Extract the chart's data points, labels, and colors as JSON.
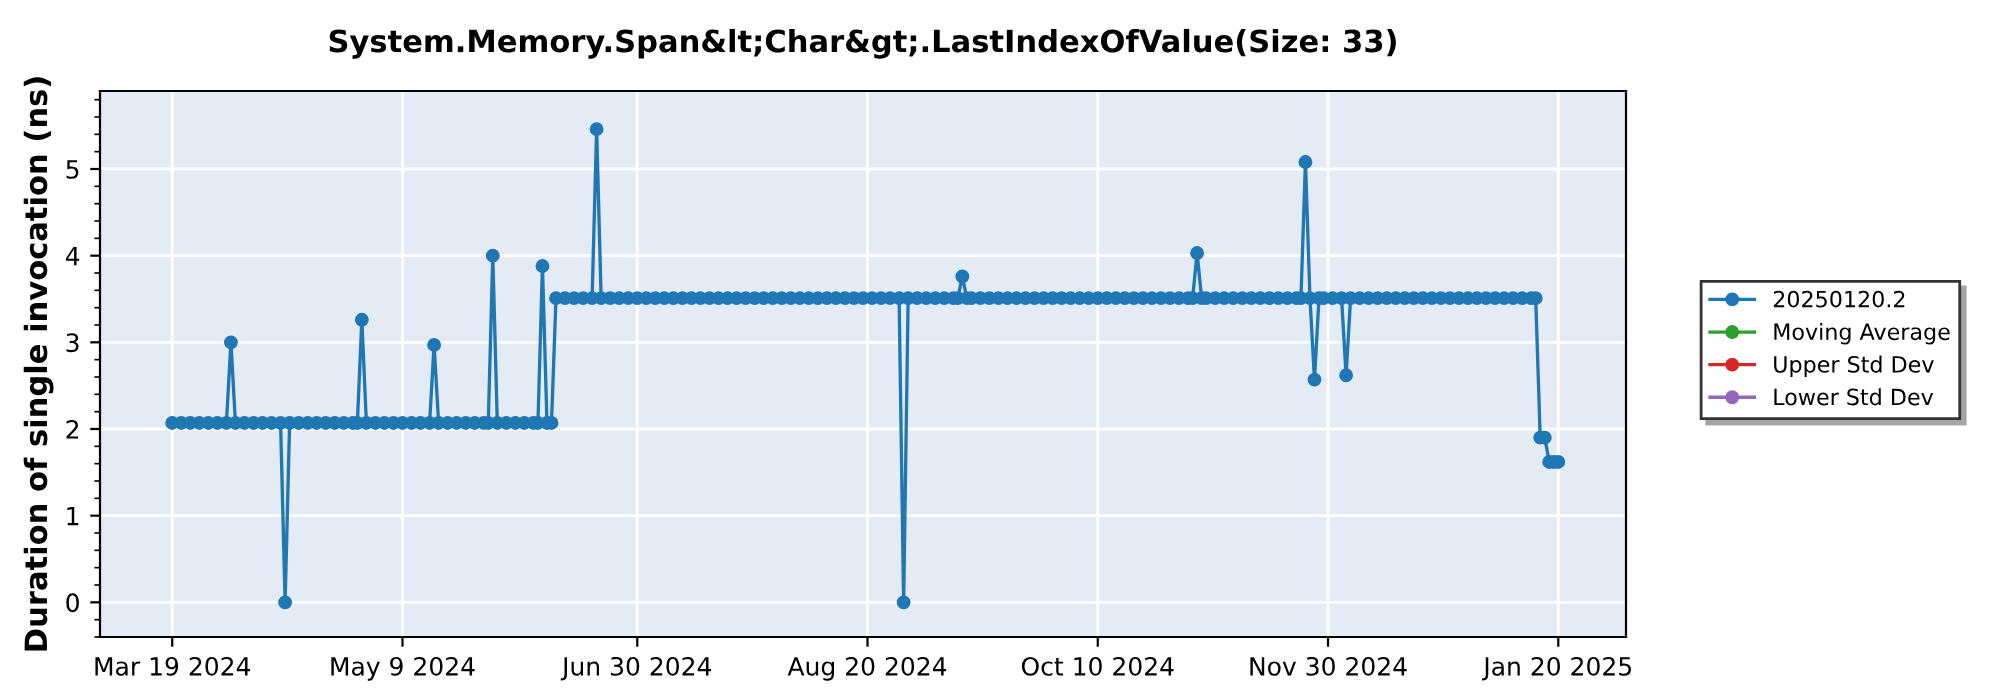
{
  "chart_data": {
    "type": "line",
    "title": "System.Memory.Span&lt;Char&gt;.LastIndexOfValue(Size: 33)",
    "ylabel": "Duration of single invocation (ns)",
    "xlim": [
      "2024-03-03",
      "2025-02-04"
    ],
    "xticks": [
      {
        "value": "2024-03-19",
        "label": "Mar 19 2024"
      },
      {
        "value": "2024-05-09",
        "label": "May 9 2024"
      },
      {
        "value": "2024-06-30",
        "label": "Jun 30 2024"
      },
      {
        "value": "2024-08-20",
        "label": "Aug 20 2024"
      },
      {
        "value": "2024-10-10",
        "label": "Oct 10 2024"
      },
      {
        "value": "2024-11-30",
        "label": "Nov 30 2024"
      },
      {
        "value": "2025-01-20",
        "label": "Jan 20 2025"
      }
    ],
    "ylim": [
      -0.4,
      5.9
    ],
    "yticks": [
      0,
      1,
      2,
      3,
      4,
      5
    ],
    "grid": true,
    "legend": "right",
    "marker": "circle",
    "line_style": "solid",
    "series": [
      {
        "name": "20250120.2",
        "color": "#1f77b4",
        "x": [
          "2024-03-19",
          "2024-03-21",
          "2024-03-23",
          "2024-03-25",
          "2024-03-27",
          "2024-03-29",
          "2024-03-31",
          "2024-04-01",
          "2024-04-02",
          "2024-04-04",
          "2024-04-06",
          "2024-04-08",
          "2024-04-10",
          "2024-04-12",
          "2024-04-13",
          "2024-04-14",
          "2024-04-16",
          "2024-04-18",
          "2024-04-20",
          "2024-04-22",
          "2024-04-24",
          "2024-04-26",
          "2024-04-28",
          "2024-04-29",
          "2024-04-30",
          "2024-05-01",
          "2024-05-03",
          "2024-05-05",
          "2024-05-07",
          "2024-05-09",
          "2024-05-11",
          "2024-05-13",
          "2024-05-15",
          "2024-05-16",
          "2024-05-17",
          "2024-05-19",
          "2024-05-21",
          "2024-05-23",
          "2024-05-25",
          "2024-05-27",
          "2024-05-28",
          "2024-05-29",
          "2024-05-30",
          "2024-06-01",
          "2024-06-03",
          "2024-06-05",
          "2024-06-07",
          "2024-06-08",
          "2024-06-09",
          "2024-06-10",
          "2024-06-11",
          "2024-06-12",
          "2024-06-14",
          "2024-06-16",
          "2024-06-18",
          "2024-06-20",
          "2024-06-21",
          "2024-06-22",
          "2024-06-24",
          "2024-06-26",
          "2024-06-28",
          "2024-06-30",
          "2024-07-02",
          "2024-07-04",
          "2024-07-06",
          "2024-07-08",
          "2024-07-10",
          "2024-07-12",
          "2024-07-14",
          "2024-07-16",
          "2024-07-18",
          "2024-07-20",
          "2024-07-22",
          "2024-07-24",
          "2024-07-26",
          "2024-07-28",
          "2024-07-30",
          "2024-08-01",
          "2024-08-03",
          "2024-08-05",
          "2024-08-07",
          "2024-08-09",
          "2024-08-11",
          "2024-08-13",
          "2024-08-15",
          "2024-08-17",
          "2024-08-19",
          "2024-08-21",
          "2024-08-23",
          "2024-08-25",
          "2024-08-27",
          "2024-08-28",
          "2024-08-29",
          "2024-08-31",
          "2024-09-02",
          "2024-09-04",
          "2024-09-06",
          "2024-09-08",
          "2024-09-09",
          "2024-09-10",
          "2024-09-11",
          "2024-09-12",
          "2024-09-14",
          "2024-09-16",
          "2024-09-18",
          "2024-09-20",
          "2024-09-22",
          "2024-09-24",
          "2024-09-26",
          "2024-09-28",
          "2024-09-30",
          "2024-10-02",
          "2024-10-04",
          "2024-10-06",
          "2024-10-08",
          "2024-10-10",
          "2024-10-12",
          "2024-10-14",
          "2024-10-16",
          "2024-10-18",
          "2024-10-20",
          "2024-10-22",
          "2024-10-24",
          "2024-10-26",
          "2024-10-28",
          "2024-10-30",
          "2024-10-31",
          "2024-11-01",
          "2024-11-02",
          "2024-11-03",
          "2024-11-05",
          "2024-11-07",
          "2024-11-09",
          "2024-11-11",
          "2024-11-13",
          "2024-11-15",
          "2024-11-17",
          "2024-11-19",
          "2024-11-21",
          "2024-11-23",
          "2024-11-24",
          "2024-11-25",
          "2024-11-26",
          "2024-11-27",
          "2024-11-28",
          "2024-11-29",
          "2024-12-01",
          "2024-12-03",
          "2024-12-04",
          "2024-12-05",
          "2024-12-07",
          "2024-12-09",
          "2024-12-11",
          "2024-12-13",
          "2024-12-15",
          "2024-12-17",
          "2024-12-19",
          "2024-12-21",
          "2024-12-23",
          "2024-12-25",
          "2024-12-27",
          "2024-12-29",
          "2024-12-31",
          "2025-01-02",
          "2025-01-04",
          "2025-01-06",
          "2025-01-08",
          "2025-01-10",
          "2025-01-12",
          "2025-01-14",
          "2025-01-15",
          "2025-01-16",
          "2025-01-17",
          "2025-01-18",
          "2025-01-19",
          "2025-01-20"
        ],
        "values": [
          2.07,
          2.07,
          2.07,
          2.07,
          2.07,
          2.07,
          2.07,
          3.0,
          2.07,
          2.07,
          2.07,
          2.07,
          2.07,
          2.07,
          0,
          2.07,
          2.07,
          2.07,
          2.07,
          2.07,
          2.07,
          2.07,
          2.07,
          2.07,
          3.26,
          2.07,
          2.07,
          2.07,
          2.07,
          2.07,
          2.07,
          2.07,
          2.07,
          2.97,
          2.07,
          2.07,
          2.07,
          2.07,
          2.07,
          2.07,
          2.07,
          4.0,
          2.07,
          2.07,
          2.07,
          2.07,
          2.07,
          2.07,
          3.88,
          2.07,
          2.07,
          3.51,
          3.51,
          3.51,
          3.51,
          3.51,
          5.46,
          3.51,
          3.51,
          3.51,
          3.51,
          3.51,
          3.51,
          3.51,
          3.51,
          3.51,
          3.51,
          3.51,
          3.51,
          3.51,
          3.51,
          3.51,
          3.51,
          3.51,
          3.51,
          3.51,
          3.51,
          3.51,
          3.51,
          3.51,
          3.51,
          3.51,
          3.51,
          3.51,
          3.51,
          3.51,
          3.51,
          3.51,
          3.51,
          3.51,
          3.51,
          0,
          3.51,
          3.51,
          3.51,
          3.51,
          3.51,
          3.51,
          3.51,
          3.76,
          3.51,
          3.51,
          3.51,
          3.51,
          3.51,
          3.51,
          3.51,
          3.51,
          3.51,
          3.51,
          3.51,
          3.51,
          3.51,
          3.51,
          3.51,
          3.51,
          3.51,
          3.51,
          3.51,
          3.51,
          3.51,
          3.51,
          3.51,
          3.51,
          3.51,
          3.51,
          3.51,
          4.03,
          3.51,
          3.51,
          3.51,
          3.51,
          3.51,
          3.51,
          3.51,
          3.51,
          3.51,
          3.51,
          3.51,
          3.51,
          3.51,
          5.08,
          3.51,
          2.57,
          3.51,
          3.51,
          3.51,
          3.51,
          2.62,
          3.51,
          3.51,
          3.51,
          3.51,
          3.51,
          3.51,
          3.51,
          3.51,
          3.51,
          3.51,
          3.51,
          3.51,
          3.51,
          3.51,
          3.51,
          3.51,
          3.51,
          3.51,
          3.51,
          3.51,
          3.51,
          3.51,
          1.9,
          1.9,
          1.62,
          1.62,
          1.62
        ]
      },
      {
        "name": "Moving Average",
        "color": "#2ca02c"
      },
      {
        "name": "Upper Std Dev",
        "color": "#d62728"
      },
      {
        "name": "Lower Std Dev",
        "color": "#9467bd"
      }
    ]
  }
}
